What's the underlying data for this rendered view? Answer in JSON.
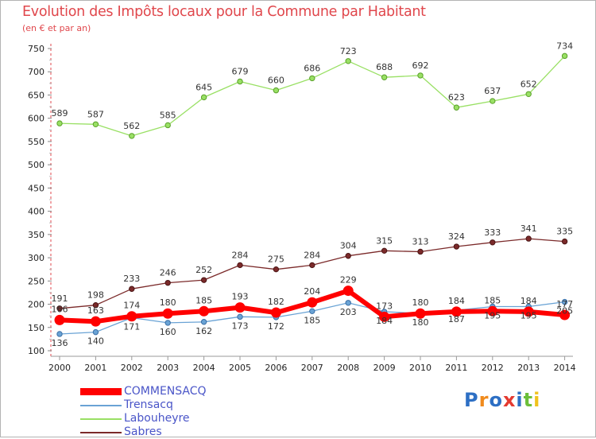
{
  "title": "Evolution des Impôts locaux pour la Commune par Habitant",
  "subtitle": "(en € et par an)",
  "brand": "Proxiti",
  "chart_data": {
    "type": "line",
    "title": "Evolution des Impôts locaux pour la Commune par Habitant",
    "subtitle": "(en € et par an)",
    "xlabel": "",
    "ylabel": "",
    "ylim": [
      100,
      750
    ],
    "yticks": [
      100,
      150,
      200,
      250,
      300,
      350,
      400,
      450,
      500,
      550,
      600,
      650,
      700,
      750
    ],
    "grid": false,
    "legend_position": "bottom-left",
    "categories": [
      "2000",
      "2001",
      "2002",
      "2003",
      "2004",
      "2005",
      "2006",
      "2007",
      "2008",
      "2009",
      "2010",
      "2011",
      "2012",
      "2013",
      "2014"
    ],
    "series": [
      {
        "name": "COMMENSACQ",
        "color": "#ff0000",
        "values": [
          166,
          163,
          174,
          180,
          185,
          193,
          182,
          204,
          229,
          173,
          180,
          184,
          185,
          184,
          177
        ]
      },
      {
        "name": "Trensacq",
        "color": "#6aa3d5",
        "values": [
          136,
          140,
          171,
          160,
          162,
          173,
          172,
          185,
          203,
          184,
          180,
          187,
          195,
          195,
          205
        ]
      },
      {
        "name": "Labouheyre",
        "color": "#99e064",
        "values": [
          589,
          587,
          562,
          585,
          645,
          679,
          660,
          686,
          723,
          688,
          692,
          623,
          637,
          652,
          734
        ]
      },
      {
        "name": "Sabres",
        "color": "#7b2a2a",
        "values": [
          191,
          198,
          233,
          246,
          252,
          284,
          275,
          284,
          304,
          315,
          313,
          324,
          333,
          341,
          335
        ]
      }
    ]
  }
}
